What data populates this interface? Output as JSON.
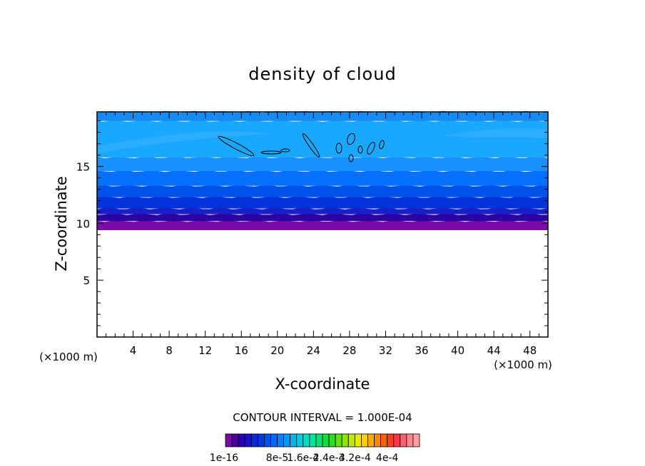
{
  "chart_data": {
    "type": "heatmap",
    "title": "density of cloud",
    "xlabel": "X-coordinate",
    "ylabel": "Z-coordinate",
    "x_unit": "(×1000 m)",
    "x_ticks": [
      4,
      8,
      12,
      16,
      20,
      24,
      28,
      32,
      36,
      40,
      44,
      48
    ],
    "y_ticks": [
      5,
      10,
      15
    ],
    "xlim": [
      0,
      50
    ],
    "ylim": [
      0,
      19.8
    ],
    "cloud_base": 9.8,
    "cloud_top": 19.8,
    "layers": [
      {
        "z0": 9.4,
        "z1": 10.2,
        "color": "#7a0aa8"
      },
      {
        "z0": 10.2,
        "z1": 10.8,
        "color": "#2a00a0"
      },
      {
        "z0": 10.8,
        "z1": 11.3,
        "color": "#1a20c8"
      },
      {
        "z0": 11.3,
        "z1": 12.3,
        "color": "#0033d8"
      },
      {
        "z0": 12.3,
        "z1": 13.3,
        "color": "#0050ea"
      },
      {
        "z0": 13.3,
        "z1": 14.6,
        "color": "#0670ff"
      },
      {
        "z0": 14.6,
        "z1": 15.8,
        "color": "#1890ff"
      },
      {
        "z0": 15.8,
        "z1": 19.0,
        "color": "#1aa8ff"
      },
      {
        "z0": 19.0,
        "z1": 19.8,
        "color": "#148cf4"
      }
    ],
    "contour_interval": "CONTOUR INTERVAL = 1.000E-04",
    "colorbar": {
      "colors": [
        "#7a0aa8",
        "#4a00a0",
        "#2a00b4",
        "#1a10c8",
        "#0a28d8",
        "#0038e8",
        "#0050f4",
        "#0068ff",
        "#0080ff",
        "#0098ff",
        "#00b4f0",
        "#00cce0",
        "#00dcc4",
        "#00e49c",
        "#00e070",
        "#10dc40",
        "#30dc20",
        "#60e010",
        "#90e400",
        "#c0e800",
        "#e8e800",
        "#ffd000",
        "#ffac00",
        "#ff8800",
        "#ff6000",
        "#ff4020",
        "#f83848",
        "#ff6070",
        "#ff8890",
        "#ffa0a0"
      ],
      "labels": [
        "1e-16",
        "8e-5",
        "1.6e-4",
        "2.4e-4",
        "3.2e-4",
        "4e-4"
      ]
    }
  }
}
